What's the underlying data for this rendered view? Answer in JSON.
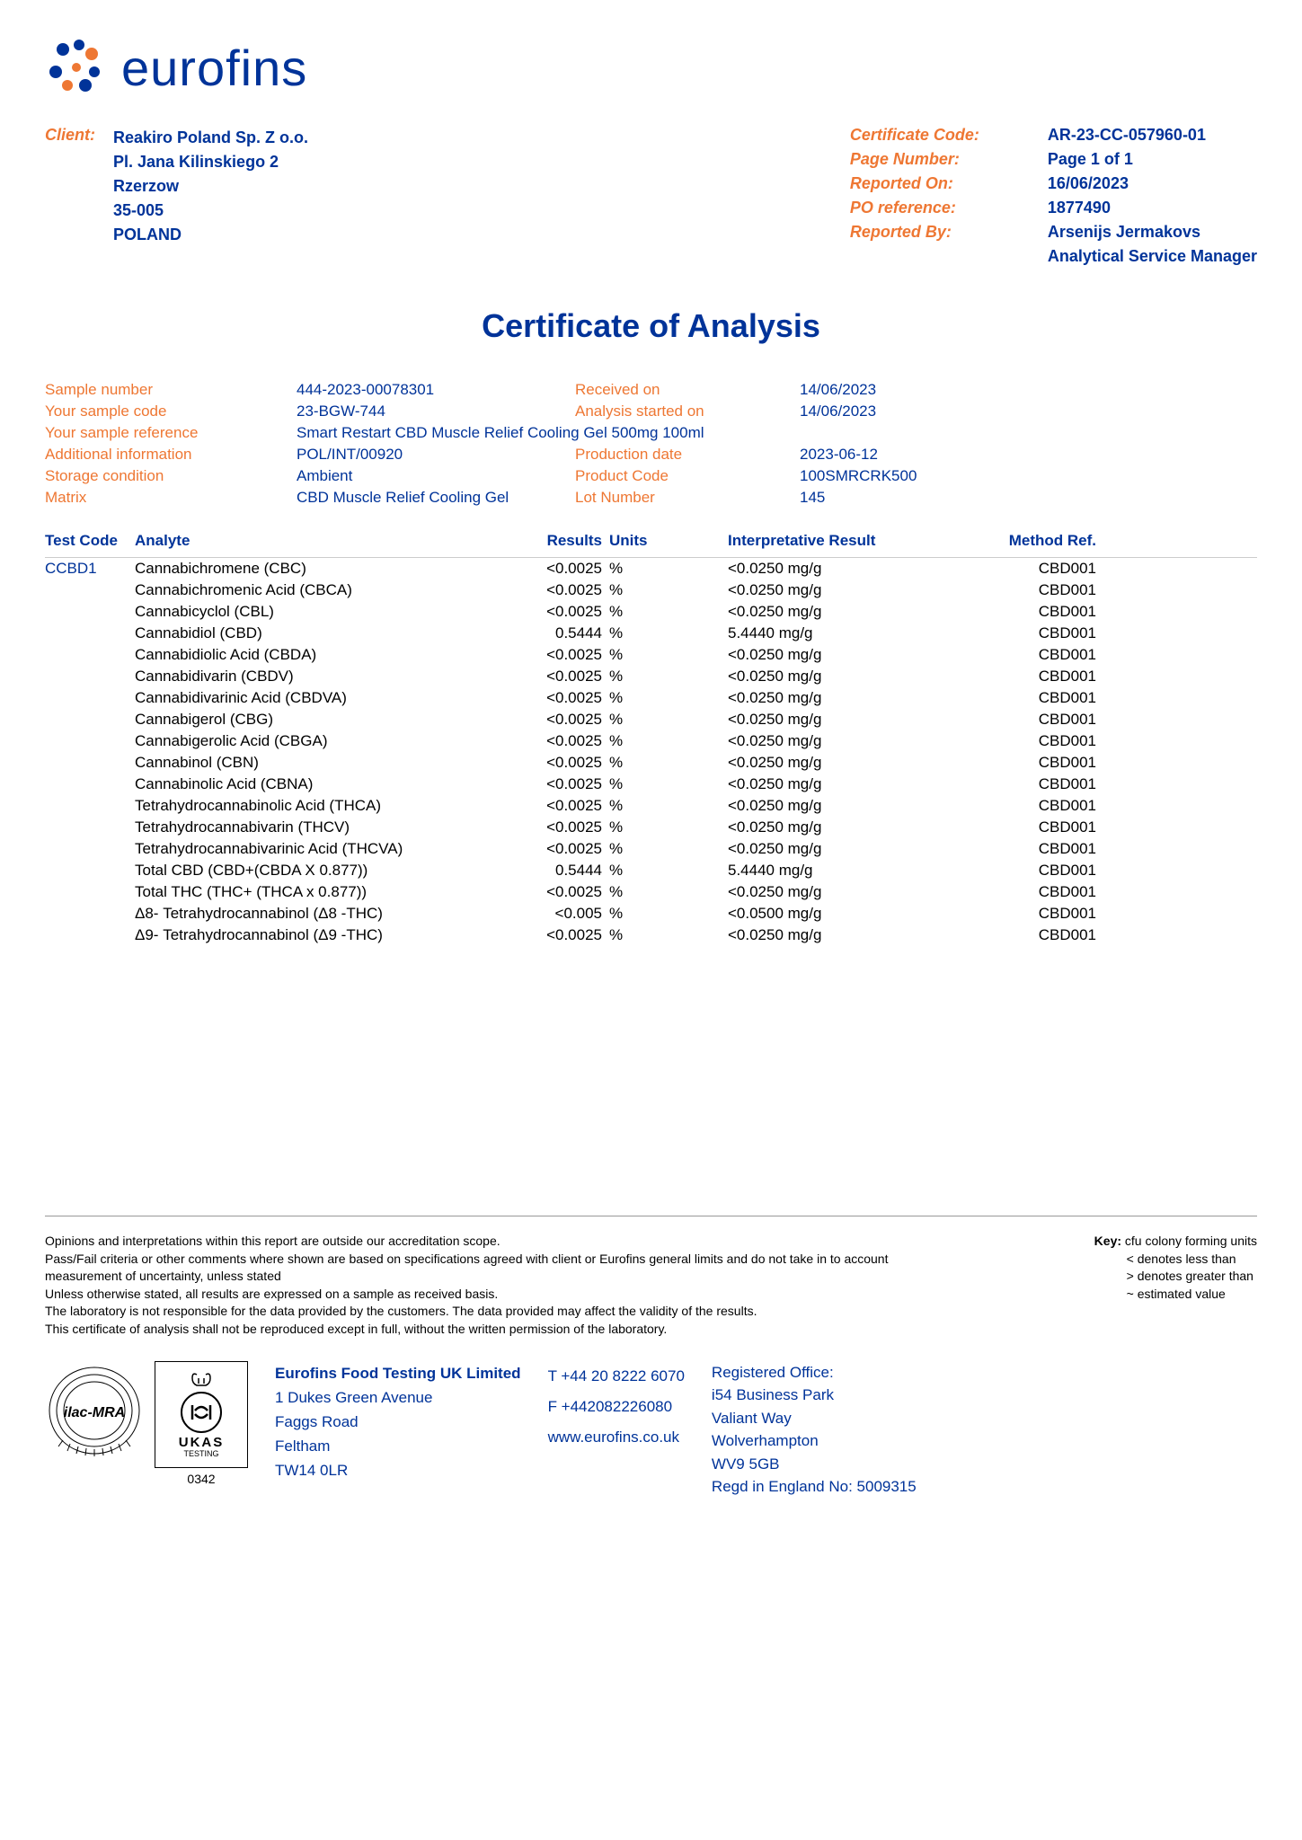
{
  "logo": {
    "text": "eurofins"
  },
  "header": {
    "client_label": "Client:",
    "client_lines": [
      "Reakiro Poland Sp. Z o.o.",
      "Pl. Jana Kilinskiego 2",
      "Rzerzow",
      "35-005",
      "POLAND"
    ],
    "cert_rows": [
      {
        "label": "Certificate Code:",
        "value": "AR-23-CC-057960-01"
      },
      {
        "label": "Page Number:",
        "value": "Page 1 of 1"
      },
      {
        "label": "Reported On:",
        "value": "16/06/2023"
      },
      {
        "label": "PO reference:",
        "value": "1877490"
      },
      {
        "label": "Reported By:",
        "value": "Arsenijs Jermakovs"
      },
      {
        "label": "",
        "value": "Analytical Service Manager"
      }
    ]
  },
  "title": "Certificate of Analysis",
  "sample": {
    "rows": [
      {
        "l1": "Sample number",
        "v1": "444-2023-00078301",
        "l2": "Received on",
        "v2": "14/06/2023"
      },
      {
        "l1": "Your sample code",
        "v1": "23-BGW-744",
        "l2": "Analysis started on",
        "v2": "14/06/2023"
      },
      {
        "l1": "Your sample reference",
        "v1": "Smart Restart CBD Muscle Relief Cooling Gel 500mg 100ml",
        "l2": "",
        "v2": ""
      },
      {
        "l1": "Additional information",
        "v1": "POL/INT/00920",
        "l2": "Production date",
        "v2": "2023-06-12"
      },
      {
        "l1": "Storage condition",
        "v1": "Ambient",
        "l2": "Product Code",
        "v2": "100SMRCRK500"
      },
      {
        "l1": "Matrix",
        "v1": "CBD Muscle Relief Cooling Gel",
        "l2": "Lot Number",
        "v2": "145"
      }
    ]
  },
  "table": {
    "headers": {
      "testcode": "Test Code",
      "analyte": "Analyte",
      "results": "Results",
      "units": "Units",
      "interp": "Interpretative Result",
      "method": "Method Ref."
    },
    "testcode": "CCBD1",
    "rows": [
      {
        "analyte": "Cannabichromene (CBC)",
        "results": "<0.0025",
        "units": "%",
        "interp": "<0.0250 mg/g",
        "method": "CBD001"
      },
      {
        "analyte": "Cannabichromenic Acid (CBCA)",
        "results": "<0.0025",
        "units": "%",
        "interp": "<0.0250 mg/g",
        "method": "CBD001"
      },
      {
        "analyte": "Cannabicyclol (CBL)",
        "results": "<0.0025",
        "units": "%",
        "interp": "<0.0250 mg/g",
        "method": "CBD001"
      },
      {
        "analyte": "Cannabidiol (CBD)",
        "results": "0.5444",
        "units": "%",
        "interp": "5.4440 mg/g",
        "method": "CBD001"
      },
      {
        "analyte": "Cannabidiolic Acid (CBDA)",
        "results": "<0.0025",
        "units": "%",
        "interp": "<0.0250 mg/g",
        "method": "CBD001"
      },
      {
        "analyte": "Cannabidivarin (CBDV)",
        "results": "<0.0025",
        "units": "%",
        "interp": "<0.0250 mg/g",
        "method": "CBD001"
      },
      {
        "analyte": "Cannabidivarinic Acid (CBDVA)",
        "results": "<0.0025",
        "units": "%",
        "interp": "<0.0250 mg/g",
        "method": "CBD001"
      },
      {
        "analyte": "Cannabigerol (CBG)",
        "results": "<0.0025",
        "units": "%",
        "interp": "<0.0250 mg/g",
        "method": "CBD001"
      },
      {
        "analyte": "Cannabigerolic Acid (CBGA)",
        "results": "<0.0025",
        "units": "%",
        "interp": "<0.0250 mg/g",
        "method": "CBD001"
      },
      {
        "analyte": "Cannabinol (CBN)",
        "results": "<0.0025",
        "units": "%",
        "interp": "<0.0250 mg/g",
        "method": "CBD001"
      },
      {
        "analyte": "Cannabinolic Acid (CBNA)",
        "results": "<0.0025",
        "units": "%",
        "interp": "<0.0250 mg/g",
        "method": "CBD001"
      },
      {
        "analyte": "Tetrahydrocannabinolic Acid (THCA)",
        "results": "<0.0025",
        "units": "%",
        "interp": "<0.0250 mg/g",
        "method": "CBD001"
      },
      {
        "analyte": "Tetrahydrocannabivarin (THCV)",
        "results": "<0.0025",
        "units": "%",
        "interp": "<0.0250 mg/g",
        "method": "CBD001"
      },
      {
        "analyte": "Tetrahydrocannabivarinic Acid (THCVA)",
        "results": "<0.0025",
        "units": "%",
        "interp": "<0.0250 mg/g",
        "method": "CBD001"
      },
      {
        "analyte": "Total CBD (CBD+(CBDA X 0.877))",
        "results": "0.5444",
        "units": "%",
        "interp": "5.4440 mg/g",
        "method": "CBD001"
      },
      {
        "analyte": "Total THC (THC+ (THCA x 0.877))",
        "results": "<0.0025",
        "units": "%",
        "interp": "<0.0250 mg/g",
        "method": "CBD001"
      },
      {
        "analyte": "Δ8- Tetrahydrocannabinol (Δ8 -THC)",
        "results": "<0.005",
        "units": "%",
        "interp": "<0.0500 mg/g",
        "method": "CBD001"
      },
      {
        "analyte": "Δ9- Tetrahydrocannabinol (Δ9 -THC)",
        "results": "<0.0025",
        "units": "%",
        "interp": "<0.0250 mg/g",
        "method": "CBD001"
      }
    ]
  },
  "footer": {
    "notes": [
      "Opinions and interpretations within this report are outside our accreditation scope.",
      "Pass/Fail criteria or other comments where shown are based on specifications agreed with client or Eurofins general limits and do not take in to account measurement of uncertainty, unless stated",
      "Unless otherwise stated, all results are expressed on a sample as received basis.",
      "The laboratory is not responsible for the data provided by the customers. The data provided may affect the validity of the results.",
      "This certificate of analysis shall not be reproduced except in full, without the written permission of the laboratory."
    ],
    "key": {
      "label": "Key:",
      "items": [
        "cfu colony forming units",
        "< denotes less than",
        "> denotes greater than",
        "~ estimated value"
      ]
    },
    "ukas_number": "0342",
    "company": {
      "title": "Eurofins Food Testing UK Limited",
      "lines": [
        "1 Dukes Green Avenue",
        "Faggs Road",
        "Feltham",
        "TW14 0LR"
      ]
    },
    "contact": {
      "tel": "T  +44 20 8222 6070",
      "fax": "F  +442082226080",
      "web": "www.eurofins.co.uk"
    },
    "regoffice": {
      "title": "Registered Office:",
      "lines": [
        "i54 Business Park",
        "Valiant Way",
        "Wolverhampton",
        "WV9 5GB",
        "Regd in England No: 5009315"
      ]
    }
  },
  "colors": {
    "brand_blue": "#003399",
    "orange": "#ee7733"
  }
}
